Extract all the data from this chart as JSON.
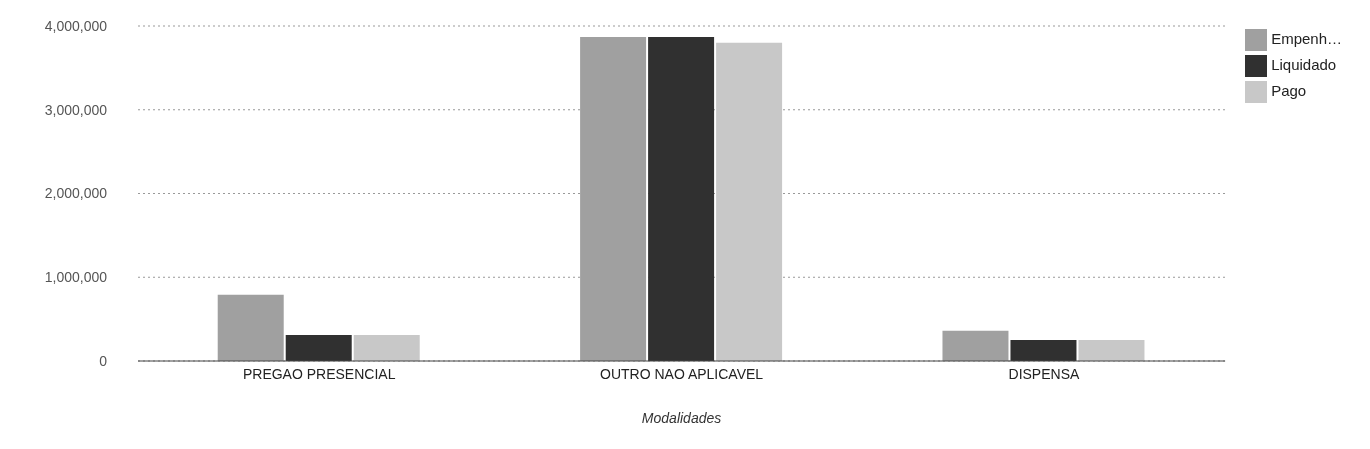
{
  "chart_data": {
    "type": "bar",
    "xlabel": "Modalidades",
    "categories": [
      "PREGAO PRESENCIAL",
      "OUTRO NAO APLICAVEL",
      "DISPENSA"
    ],
    "series": [
      {
        "name": "Empenh…",
        "color": "#a0a0a0",
        "values": [
          790000,
          3870000,
          360000
        ]
      },
      {
        "name": "Liquidado",
        "color": "#303030",
        "values": [
          310000,
          3870000,
          250000
        ]
      },
      {
        "name": "Pago",
        "color": "#c8c8c8",
        "values": [
          310000,
          3800000,
          250000
        ]
      }
    ],
    "ylim": [
      0,
      4000000
    ],
    "yticks": [
      0,
      {
        "value": 1000000,
        "label": "1,000,000"
      },
      {
        "value": 2000000,
        "label": "2,000,000"
      },
      {
        "value": 3000000,
        "label": "3,000,000"
      },
      {
        "value": 4000000,
        "label": "4,000,000"
      }
    ],
    "grid": "y",
    "legend": "top right"
  }
}
